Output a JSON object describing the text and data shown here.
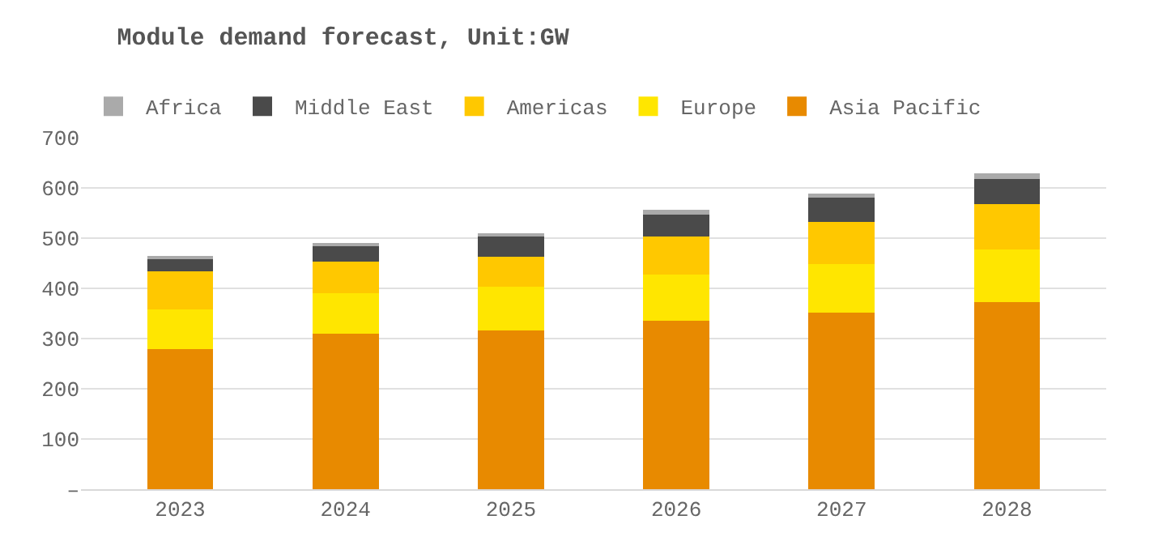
{
  "chart_data": {
    "type": "bar",
    "title": "Module demand forecast, Unit:GW",
    "stacked": true,
    "categories": [
      "2023",
      "2024",
      "2025",
      "2026",
      "2027",
      "2028"
    ],
    "series": [
      {
        "name": "Asia Pacific",
        "color": "#e88a00",
        "values": [
          279,
          309,
          316,
          336,
          351,
          372
        ]
      },
      {
        "name": "Europe",
        "color": "#ffe600",
        "values": [
          79,
          82,
          87,
          91,
          98,
          105
        ]
      },
      {
        "name": "Americas",
        "color": "#ffc800",
        "values": [
          76,
          62,
          60,
          77,
          83,
          90
        ]
      },
      {
        "name": "Middle East",
        "color": "#4a4a4a",
        "values": [
          26,
          32,
          41,
          43,
          48,
          50
        ]
      },
      {
        "name": "Africa",
        "color": "#aaaaaa",
        "values": [
          4,
          6,
          5,
          10,
          8,
          12
        ]
      }
    ],
    "ylim": [
      0,
      700
    ],
    "yticks": [
      {
        "value": 0,
        "label": "–"
      },
      100,
      200,
      300,
      400,
      500,
      600,
      700
    ],
    "grid": "y",
    "legend": "top"
  }
}
